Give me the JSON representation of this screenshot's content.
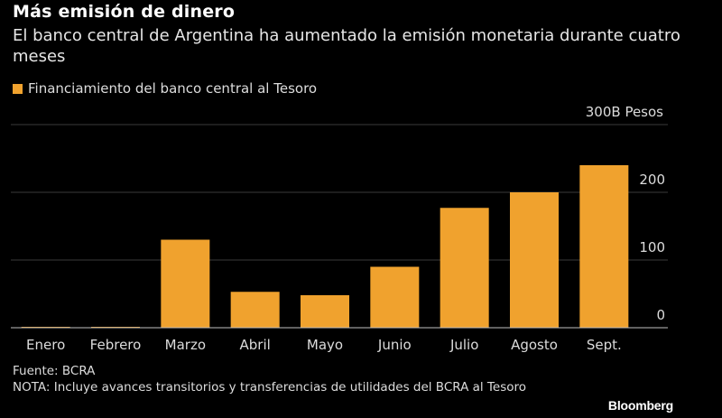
{
  "header": {
    "title": "Más emisión de dinero",
    "subtitle": "El banco central de Argentina ha aumentado la emisión monetaria durante cuatro meses"
  },
  "chart_data": {
    "type": "bar",
    "title": "Más emisión de dinero",
    "subtitle": "El banco central de Argentina ha aumentado la emisión monetaria durante cuatro meses",
    "categories": [
      "Enero",
      "Febrero",
      "Marzo",
      "Abril",
      "Mayo",
      "Junio",
      "Julio",
      "Agosto",
      "Sept."
    ],
    "series": [
      {
        "name": "Financiamiento del banco central al Tesoro",
        "color": "#f0a22e",
        "values": [
          0.5,
          0.5,
          130,
          53,
          48,
          90,
          177,
          200,
          240
        ]
      }
    ],
    "yticks": [
      0,
      100,
      200,
      300
    ],
    "ytick_labels": [
      "0",
      "100",
      "200",
      "300B Pesos"
    ],
    "ylim": [
      0,
      300
    ],
    "xlabel": "",
    "ylabel": "",
    "grid": true,
    "legend_position": "top-left"
  },
  "footer": {
    "source": "Fuente: BCRA",
    "note": "NOTA: Incluye avances transitorios y transferencias de utilidades del BCRA al Tesoro",
    "brand": "Bloomberg"
  }
}
